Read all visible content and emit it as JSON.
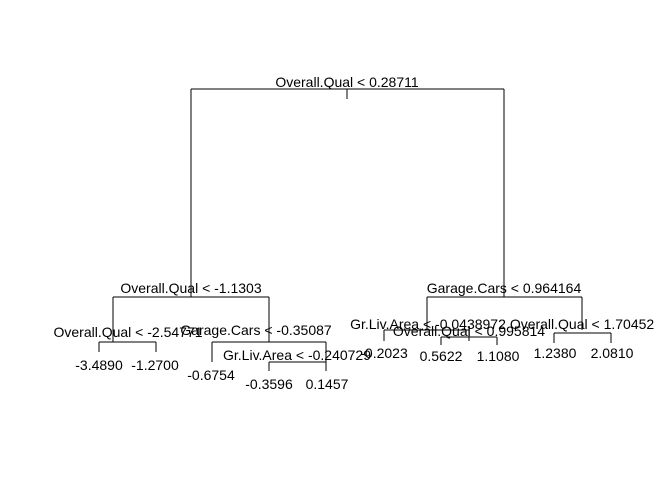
{
  "tree": {
    "splits": {
      "root": "Overall.Qual < 0.28711",
      "left": "Overall.Qual < -1.1303",
      "left_left": "Overall.Qual < -2.54771",
      "left_right": "Garage.Cars < -0.35087",
      "left_right_right": "Gr.Liv.Area < -0.240729",
      "right": "Garage.Cars < 0.964164",
      "right_left": "Gr.Liv.Area < -0.0438972",
      "right_left_right": "Overall.Qual < 0.995814",
      "right_right": "Overall.Qual < 1.70452"
    },
    "leaves": {
      "l1": "-3.4890",
      "l2": "-1.2700",
      "l3": "-0.6754",
      "l4": "-0.3596",
      "l5": "0.1457",
      "l6": "-0.2023",
      "l7": "0.5622",
      "l8": "1.1080",
      "l9": "1.2380",
      "l10": "2.0810"
    }
  }
}
